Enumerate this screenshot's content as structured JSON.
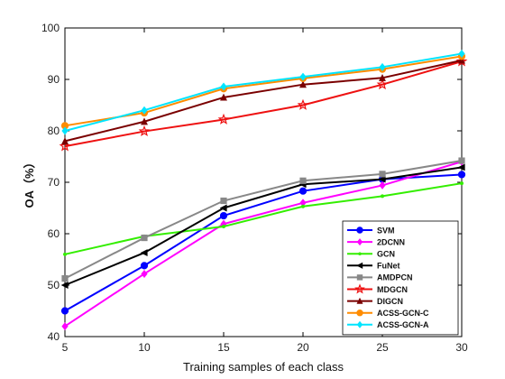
{
  "chart_data": {
    "type": "line",
    "xlabel": "Training samples of each class",
    "ylabel": "OA（%）",
    "x": [
      5,
      10,
      15,
      20,
      25,
      30
    ],
    "xlim": [
      5,
      30
    ],
    "ylim": [
      40,
      100
    ],
    "xticks": [
      "5",
      "10",
      "15",
      "20",
      "25",
      "30"
    ],
    "yticks": [
      "40",
      "50",
      "60",
      "70",
      "80",
      "90",
      "100"
    ],
    "grid": false,
    "legend_position": "bottom-right",
    "series": [
      {
        "name": "SVM",
        "color": "#0000ff",
        "marker": "circle",
        "values": [
          45.0,
          53.8,
          63.5,
          68.3,
          70.6,
          71.5
        ]
      },
      {
        "name": "2DCNN",
        "color": "#ff00ff",
        "marker": "diamond",
        "values": [
          42.0,
          52.2,
          61.9,
          66.0,
          69.4,
          74.0
        ]
      },
      {
        "name": "GCN",
        "color": "#33ee00",
        "marker": "dot",
        "values": [
          56.0,
          59.5,
          61.4,
          65.3,
          67.3,
          69.8
        ]
      },
      {
        "name": "FuNet",
        "color": "#000000",
        "marker": "triangle-left",
        "values": [
          50.0,
          56.3,
          65.0,
          69.6,
          70.6,
          72.9
        ]
      },
      {
        "name": "AMDPCN",
        "color": "#888888",
        "marker": "square",
        "values": [
          51.3,
          59.2,
          66.4,
          70.3,
          71.6,
          74.2
        ]
      },
      {
        "name": "MDGCN",
        "color": "#ee1111",
        "marker": "star",
        "values": [
          77.0,
          79.9,
          82.2,
          85.0,
          89.0,
          93.5
        ]
      },
      {
        "name": "DIGCN",
        "color": "#7a0000",
        "marker": "triangle-up",
        "values": [
          78.0,
          81.8,
          86.5,
          89.0,
          90.3,
          93.7
        ]
      },
      {
        "name": "ACSS-GCN-C",
        "color": "#ff8c00",
        "marker": "circle",
        "values": [
          81.0,
          83.5,
          88.2,
          90.2,
          92.0,
          94.5
        ]
      },
      {
        "name": "ACSS-GCN-A",
        "color": "#00e5ff",
        "marker": "diamond",
        "values": [
          80.0,
          84.0,
          88.6,
          90.5,
          92.4,
          95.0
        ]
      }
    ]
  }
}
